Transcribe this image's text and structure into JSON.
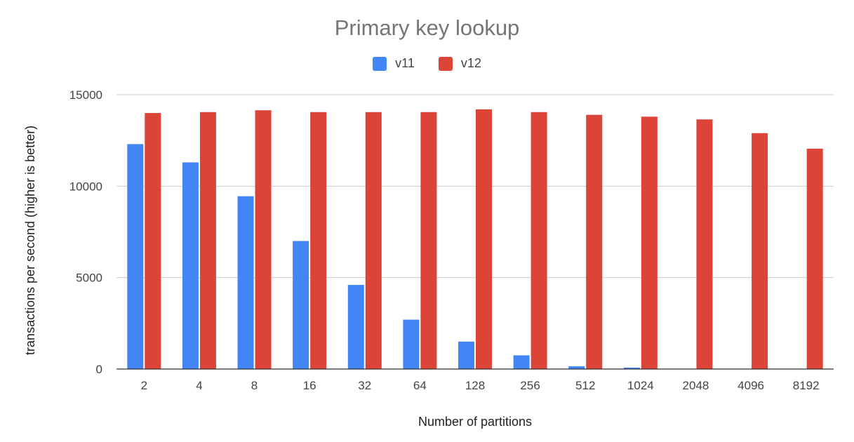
{
  "chart_data": {
    "type": "bar",
    "title": "Primary key lookup",
    "xlabel": "Number of partitions",
    "ylabel": "transactions per second (higher is better)",
    "ylim": [
      0,
      15000
    ],
    "yticks": [
      0,
      5000,
      10000,
      15000
    ],
    "grid": true,
    "legend_position": "top",
    "categories": [
      "2",
      "4",
      "8",
      "16",
      "32",
      "64",
      "128",
      "256",
      "512",
      "1024",
      "2048",
      "4096",
      "8192"
    ],
    "series": [
      {
        "name": "v11",
        "color": "#4285f4",
        "values": [
          12300,
          11300,
          9450,
          7000,
          4600,
          2700,
          1500,
          750,
          150,
          80,
          0,
          0,
          0
        ]
      },
      {
        "name": "v12",
        "color": "#db4437",
        "values": [
          14000,
          14050,
          14150,
          14050,
          14050,
          14050,
          14200,
          14050,
          13900,
          13800,
          13650,
          12900,
          12050
        ]
      }
    ]
  }
}
